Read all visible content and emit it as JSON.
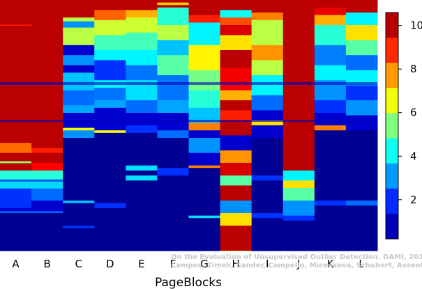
{
  "chart_data": {
    "type": "heatmap",
    "xlabel": "PageBlocks",
    "categories": [
      "A",
      "B",
      "C",
      "D",
      "E",
      "F",
      "G",
      "H",
      "I",
      "J",
      "K",
      "L"
    ],
    "colorbar": {
      "min": 0.2,
      "max": 10.6,
      "ticks": [
        2,
        4,
        6,
        8,
        10
      ]
    },
    "colormap": [
      "#00007f",
      "#0000ff",
      "#007fff",
      "#00ffff",
      "#7fff7f",
      "#ffff00",
      "#ff7f00",
      "#ff0000",
      "#7f0000"
    ],
    "notes_rows": "Each column lists ranking-band values (0 = blue, 10 = dark red) from top to bottom; each band spans a fraction of the column height.",
    "columns": [
      {
        "name": "A",
        "bands": [
          [
            0.0,
            10
          ],
          [
            0.098,
            9
          ],
          [
            0.103,
            10
          ],
          [
            0.57,
            8.2
          ],
          [
            0.61,
            10
          ],
          [
            0.643,
            5.6
          ],
          [
            0.651,
            10
          ],
          [
            0.68,
            4.5
          ],
          [
            0.716,
            2.3
          ],
          [
            0.724,
            3.7
          ],
          [
            0.752,
            2
          ],
          [
            0.83,
            1
          ],
          [
            0.843,
            2.6
          ],
          [
            0.85,
            0.4
          ]
        ]
      },
      {
        "name": "B",
        "bands": [
          [
            0.0,
            10
          ],
          [
            0.59,
            9
          ],
          [
            0.61,
            10
          ],
          [
            0.65,
            9.3
          ],
          [
            0.68,
            4.5
          ],
          [
            0.716,
            2.3
          ],
          [
            0.724,
            3.7
          ],
          [
            0.752,
            2.6
          ],
          [
            0.8,
            1
          ],
          [
            0.843,
            2.6
          ],
          [
            0.85,
            0.4
          ]
        ]
      },
      {
        "name": "C",
        "bands": [
          [
            0.0,
            10
          ],
          [
            0.07,
            6
          ],
          [
            0.085,
            3
          ],
          [
            0.11,
            6
          ],
          [
            0.18,
            1
          ],
          [
            0.22,
            3
          ],
          [
            0.26,
            1
          ],
          [
            0.29,
            3.5
          ],
          [
            0.36,
            2.6
          ],
          [
            0.42,
            3.2
          ],
          [
            0.45,
            1
          ],
          [
            0.51,
            6.7
          ],
          [
            0.52,
            3
          ],
          [
            0.55,
            0.4
          ],
          [
            0.8,
            3.5
          ],
          [
            0.81,
            0.4
          ],
          [
            0.9,
            2
          ],
          [
            0.91,
            0.4
          ]
        ]
      },
      {
        "name": "D",
        "bands": [
          [
            0.0,
            10
          ],
          [
            0.04,
            8.3
          ],
          [
            0.08,
            6.2
          ],
          [
            0.14,
            4.8
          ],
          [
            0.2,
            4
          ],
          [
            0.24,
            2
          ],
          [
            0.32,
            4
          ],
          [
            0.35,
            2.7
          ],
          [
            0.4,
            3.2
          ],
          [
            0.43,
            1
          ],
          [
            0.52,
            6.7
          ],
          [
            0.53,
            0.4
          ],
          [
            0.81,
            2
          ],
          [
            0.83,
            0.4
          ]
        ]
      },
      {
        "name": "E",
        "bands": [
          [
            0.0,
            10
          ],
          [
            0.04,
            7.5
          ],
          [
            0.07,
            6.2
          ],
          [
            0.13,
            4.8
          ],
          [
            0.2,
            4
          ],
          [
            0.26,
            2.7
          ],
          [
            0.32,
            3.8
          ],
          [
            0.4,
            2.6
          ],
          [
            0.45,
            1
          ],
          [
            0.5,
            2
          ],
          [
            0.53,
            0.4
          ],
          [
            0.66,
            3.8
          ],
          [
            0.68,
            0.4
          ],
          [
            0.7,
            3.8
          ],
          [
            0.72,
            0.4
          ]
        ]
      },
      {
        "name": "F",
        "bands": [
          [
            0.0,
            10
          ],
          [
            0.01,
            7.2
          ],
          [
            0.02,
            10
          ],
          [
            0.03,
            4.5
          ],
          [
            0.1,
            6
          ],
          [
            0.16,
            3.5
          ],
          [
            0.22,
            5
          ],
          [
            0.3,
            2.7
          ],
          [
            0.4,
            3.2
          ],
          [
            0.45,
            1
          ],
          [
            0.52,
            2.6
          ],
          [
            0.55,
            0.4
          ],
          [
            0.67,
            2
          ],
          [
            0.7,
            0.4
          ]
        ]
      },
      {
        "name": "G",
        "bands": [
          [
            0.0,
            10
          ],
          [
            0.06,
            9
          ],
          [
            0.09,
            4
          ],
          [
            0.18,
            6.8
          ],
          [
            0.28,
            5.3
          ],
          [
            0.36,
            4.5
          ],
          [
            0.43,
            3.5
          ],
          [
            0.49,
            8
          ],
          [
            0.52,
            1
          ],
          [
            0.55,
            3
          ],
          [
            0.61,
            1
          ],
          [
            0.66,
            8
          ],
          [
            0.67,
            0.4
          ],
          [
            0.86,
            3.8
          ],
          [
            0.87,
            0.4
          ]
        ]
      },
      {
        "name": "H",
        "bands": [
          [
            0.0,
            10
          ],
          [
            0.04,
            4.2
          ],
          [
            0.07,
            8.5
          ],
          [
            0.1,
            9.7
          ],
          [
            0.14,
            7
          ],
          [
            0.2,
            10
          ],
          [
            0.27,
            9.4
          ],
          [
            0.36,
            7.5
          ],
          [
            0.4,
            10
          ],
          [
            0.44,
            9
          ],
          [
            0.48,
            10
          ],
          [
            0.54,
            1
          ],
          [
            0.6,
            7.8
          ],
          [
            0.65,
            9.7
          ],
          [
            0.7,
            5
          ],
          [
            0.74,
            10
          ],
          [
            0.8,
            3
          ],
          [
            0.85,
            7
          ],
          [
            0.9,
            10
          ],
          [
            1.0,
            7
          ]
        ]
      },
      {
        "name": "I",
        "bands": [
          [
            0.0,
            10
          ],
          [
            0.05,
            8
          ],
          [
            0.08,
            6
          ],
          [
            0.18,
            7.8
          ],
          [
            0.24,
            6
          ],
          [
            0.3,
            4
          ],
          [
            0.38,
            2.6
          ],
          [
            0.44,
            1
          ],
          [
            0.48,
            7
          ],
          [
            0.5,
            1
          ],
          [
            0.55,
            0.4
          ],
          [
            0.7,
            2
          ],
          [
            0.72,
            0.4
          ],
          [
            0.85,
            2
          ],
          [
            0.87,
            0.4
          ]
        ]
      },
      {
        "name": "J",
        "bands": [
          [
            0.0,
            10
          ],
          [
            0.66,
            10
          ],
          [
            0.68,
            4
          ],
          [
            0.72,
            7
          ],
          [
            0.75,
            5
          ],
          [
            0.8,
            3
          ],
          [
            0.86,
            2
          ],
          [
            0.88,
            0.4
          ]
        ]
      },
      {
        "name": "K",
        "bands": [
          [
            0.0,
            10
          ],
          [
            0.03,
            9.5
          ],
          [
            0.06,
            7.5
          ],
          [
            0.1,
            4.5
          ],
          [
            0.18,
            2.8
          ],
          [
            0.26,
            4
          ],
          [
            0.32,
            3
          ],
          [
            0.4,
            2
          ],
          [
            0.45,
            1
          ],
          [
            0.5,
            8
          ],
          [
            0.52,
            0.4
          ],
          [
            0.8,
            2
          ],
          [
            0.82,
            0.4
          ]
        ]
      },
      {
        "name": "L",
        "bands": [
          [
            0.0,
            10
          ],
          [
            0.05,
            4
          ],
          [
            0.1,
            7
          ],
          [
            0.16,
            5
          ],
          [
            0.22,
            2.6
          ],
          [
            0.28,
            4
          ],
          [
            0.34,
            2
          ],
          [
            0.4,
            3
          ],
          [
            0.46,
            1
          ],
          [
            0.52,
            0.4
          ],
          [
            0.8,
            2.6
          ],
          [
            0.82,
            0.4
          ]
        ]
      }
    ]
  },
  "watermark": {
    "line1": "On the Evaluation of Unsupervised Outlier Detection. DAMI, 2015.",
    "line2": "Campos, Zimek, Sander, Campello, Micenková, Schubert, Assent, Houle"
  }
}
